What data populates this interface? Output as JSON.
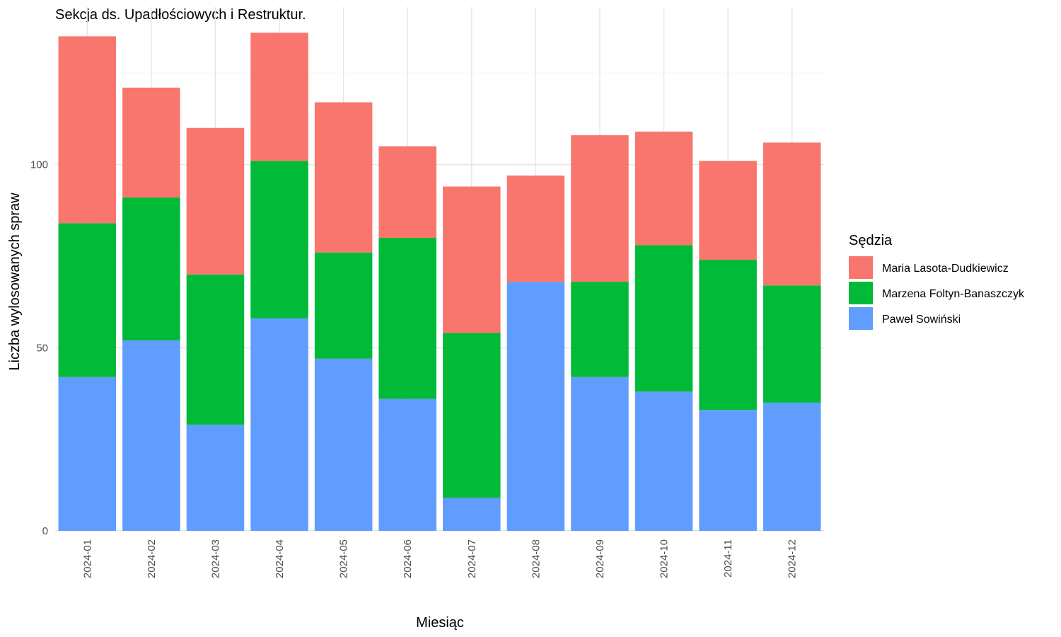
{
  "chart_data": {
    "type": "bar",
    "stacked": true,
    "title": "Sekcja ds. Upadłościowych i Restruktur.",
    "xlabel": "Miesiąc",
    "ylabel": "Liczba wylosowanych spraw",
    "ylim": [
      0,
      140
    ],
    "yticks": [
      0,
      50,
      100
    ],
    "grid": true,
    "legend": {
      "title": "Sędzia",
      "position": "right"
    },
    "categories": [
      "2024-01",
      "2024-02",
      "2024-03",
      "2024-04",
      "2024-05",
      "2024-06",
      "2024-07",
      "2024-08",
      "2024-09",
      "2024-10",
      "2024-11",
      "2024-12"
    ],
    "series": [
      {
        "name": "Paweł Sowiński",
        "color": "#619CFF",
        "values": [
          42,
          52,
          29,
          58,
          47,
          36,
          9,
          68,
          42,
          38,
          33,
          35
        ]
      },
      {
        "name": "Marzena Foltyn-Banaszczyk",
        "color": "#00BA38",
        "values": [
          42,
          39,
          41,
          43,
          29,
          44,
          45,
          0,
          26,
          40,
          41,
          32
        ]
      },
      {
        "name": "Maria Lasota-Dudkiewicz",
        "color": "#F8766D",
        "values": [
          51,
          30,
          40,
          35,
          41,
          25,
          40,
          29,
          40,
          31,
          27,
          39
        ]
      }
    ],
    "legend_order": [
      "Maria Lasota-Dudkiewicz",
      "Marzena Foltyn-Banaszczyk",
      "Paweł Sowiński"
    ]
  }
}
